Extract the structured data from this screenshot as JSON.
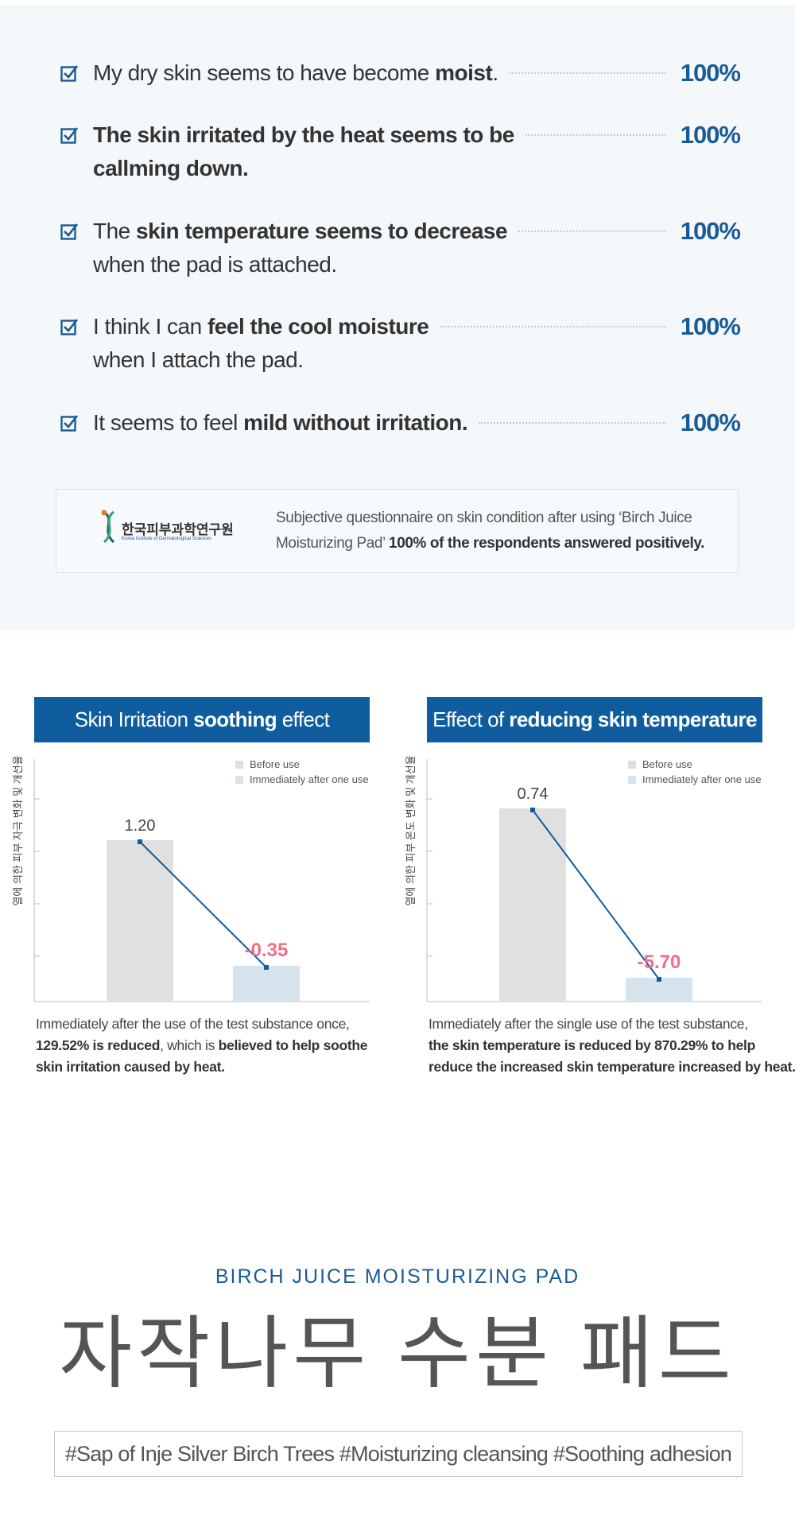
{
  "survey": {
    "items": [
      {
        "lines": [
          [
            {
              "t": "My dry skin seems to have become "
            },
            {
              "b": "moist"
            },
            {
              "t": "."
            }
          ]
        ],
        "percent": "100%"
      },
      {
        "lines": [
          [
            {
              "b": "The skin irritated by the heat seems to be"
            }
          ],
          [
            {
              "b": "callming down."
            }
          ]
        ],
        "percent": "100%"
      },
      {
        "lines": [
          [
            {
              "t": "The "
            },
            {
              "b": "skin temperature seems to decrease"
            }
          ],
          [
            {
              "t": "when the pad is attached."
            }
          ]
        ],
        "percent": "100%"
      },
      {
        "lines": [
          [
            {
              "t": "I think I can "
            },
            {
              "b": "feel the cool moisture"
            }
          ],
          [
            {
              "t": "when I attach the pad."
            }
          ]
        ],
        "percent": "100%"
      },
      {
        "lines": [
          [
            {
              "t": "It seems to feel "
            },
            {
              "b": "mild without irritation."
            }
          ]
        ],
        "percent": "100%"
      }
    ],
    "note": {
      "logo_kr": "한국피부과학연구원",
      "logo_en": "Korea Institute of Dermatological Sciences",
      "line1": "Subjective questionnaire on skin condition after using ‘Birch Juice",
      "line2_plain": "Moisturizing Pad’ ",
      "line2_bold": "100% of the respondents answered positively."
    }
  },
  "charts": [
    {
      "title": [
        {
          "t": "Skin Irritation "
        },
        {
          "b": "soothing"
        },
        {
          "t": " effect"
        }
      ],
      "y_label": "열에 의한 피부 자극 변화 및 개선율",
      "legend": [
        "Before use",
        "Immediately after one use"
      ],
      "before_label": "1.20",
      "after_label": "-0.35",
      "caption": [
        [
          {
            "t": "Immediately after the use of the test substance once,"
          }
        ],
        [
          {
            "b": "129.52% is reduced"
          },
          {
            "t": ", which is "
          },
          {
            "b": "believed to help soothe"
          }
        ],
        [
          {
            "b": "skin irritation caused by heat."
          }
        ]
      ]
    },
    {
      "title": [
        {
          "t": "Effect of "
        },
        {
          "b": "reducing skin temperature"
        }
      ],
      "y_label": "열에 의한 피부 온도 변화 및 개선율",
      "legend": [
        "Before use",
        "Immediately after one use"
      ],
      "before_label": "0.74",
      "after_label": "-5.70",
      "caption": [
        [
          {
            "t": "Immediately after the single use of the test substance,"
          }
        ],
        [
          {
            "b": "the skin temperature is reduced by 870.29% to help"
          }
        ],
        [
          {
            "b": "reduce the increased skin temperature increased by heat."
          }
        ]
      ]
    }
  ],
  "product": {
    "subtitle": "BIRCH JUICE MOISTURIZING PAD",
    "title": "자작나무 수분 패드",
    "tags": "#Sap of Inje Silver Birch Trees #Moisturizing cleansing  #Soothing adhesion"
  }
}
